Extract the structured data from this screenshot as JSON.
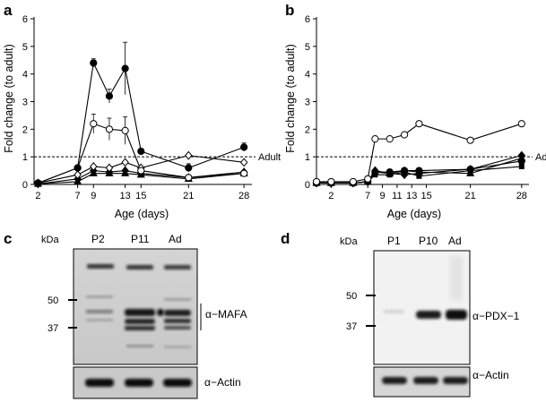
{
  "panels": {
    "a": {
      "letter": "a"
    },
    "b": {
      "letter": "b"
    },
    "c": {
      "letter": "c"
    },
    "d": {
      "letter": "d"
    }
  },
  "chart_data": [
    {
      "type": "line",
      "panel": "a",
      "xlabel": "Age (days)",
      "ylabel": "Fold change (to adult)",
      "xlim": [
        1.5,
        29
      ],
      "ylim": [
        0,
        6
      ],
      "xticks": [
        2,
        7,
        9,
        13,
        15,
        21,
        28
      ],
      "yticks": [
        0,
        1,
        2,
        3,
        4,
        5,
        6
      ],
      "reference_line": {
        "y": 1,
        "label": "Adult",
        "style": "dashed"
      },
      "series": [
        {
          "marker": "filled-circle",
          "points": [
            [
              2,
              0.05
            ],
            [
              7,
              0.6
            ],
            [
              9,
              4.4
            ],
            [
              11,
              3.2
            ],
            [
              13,
              4.2
            ],
            [
              15,
              1.2
            ],
            [
              21,
              0.6
            ],
            [
              28,
              1.35
            ]
          ],
          "errors": [
            0,
            0.1,
            0.15,
            0.25,
            0.95,
            0.1,
            0.15,
            0.15
          ]
        },
        {
          "marker": "open-circle",
          "points": [
            [
              2,
              0.05
            ],
            [
              7,
              0.6
            ],
            [
              9,
              2.2
            ],
            [
              11,
              2.0
            ],
            [
              13,
              1.95
            ],
            [
              15,
              0.5
            ],
            [
              21,
              0.25
            ],
            [
              28,
              0.4
            ]
          ],
          "errors": [
            0,
            0.1,
            0.35,
            0.4,
            0.5,
            0.1,
            0.05,
            0.05
          ]
        },
        {
          "marker": "open-diamond",
          "points": [
            [
              2,
              0.05
            ],
            [
              7,
              0.35
            ],
            [
              9,
              0.65
            ],
            [
              11,
              0.6
            ],
            [
              13,
              0.8
            ],
            [
              15,
              0.6
            ],
            [
              21,
              1.05
            ],
            [
              28,
              0.8
            ]
          ],
          "errors": [
            0,
            0,
            0,
            0,
            0,
            0,
            0,
            0
          ]
        },
        {
          "marker": "filled-triangle",
          "points": [
            [
              2,
              0.02
            ],
            [
              7,
              0.1
            ],
            [
              9,
              0.4
            ],
            [
              11,
              0.4
            ],
            [
              13,
              0.4
            ],
            [
              15,
              0.35
            ],
            [
              21,
              0.2
            ],
            [
              28,
              0.4
            ]
          ],
          "errors": [
            0,
            0,
            0,
            0,
            0,
            0,
            0,
            0
          ]
        },
        {
          "marker": "filled-diamond",
          "points": [
            [
              2,
              0.02
            ],
            [
              7,
              0.2
            ],
            [
              9,
              0.5
            ],
            [
              11,
              0.45
            ],
            [
              13,
              0.5
            ],
            [
              15,
              0.4
            ],
            [
              21,
              0.25
            ],
            [
              28,
              0.45
            ]
          ],
          "errors": [
            0,
            0,
            0,
            0,
            0,
            0,
            0,
            0
          ]
        }
      ]
    },
    {
      "type": "line",
      "panel": "b",
      "xlabel": "Age (days)",
      "ylabel": "Fold change (to adult)",
      "xlim": [
        0,
        29
      ],
      "ylim": [
        0,
        6
      ],
      "xticks": [
        2,
        7,
        9,
        11,
        13,
        15,
        21,
        28
      ],
      "yticks": [
        0,
        1,
        2,
        3,
        4,
        5,
        6
      ],
      "reference_line": {
        "y": 1,
        "label": "Adult",
        "style": "dashed"
      },
      "series": [
        {
          "marker": "open-circle",
          "points": [
            [
              0,
              0.1
            ],
            [
              2,
              0.1
            ],
            [
              5,
              0.1
            ],
            [
              7,
              0.2
            ],
            [
              8,
              1.65
            ],
            [
              10,
              1.65
            ],
            [
              12,
              1.8
            ],
            [
              14,
              2.2
            ],
            [
              21,
              1.6
            ],
            [
              28,
              2.2
            ]
          ]
        },
        {
          "marker": "filled-circle",
          "points": [
            [
              0,
              0.05
            ],
            [
              2,
              0.05
            ],
            [
              5,
              0.05
            ],
            [
              7,
              0.1
            ],
            [
              8,
              0.45
            ],
            [
              10,
              0.45
            ],
            [
              12,
              0.5
            ],
            [
              14,
              0.5
            ],
            [
              21,
              0.55
            ],
            [
              28,
              0.85
            ]
          ]
        },
        {
          "marker": "filled-square",
          "points": [
            [
              0,
              0.05
            ],
            [
              2,
              0.05
            ],
            [
              5,
              0.05
            ],
            [
              7,
              0.1
            ],
            [
              8,
              0.35
            ],
            [
              10,
              0.35
            ],
            [
              12,
              0.45
            ],
            [
              14,
              0.3
            ],
            [
              21,
              0.5
            ],
            [
              28,
              0.65
            ]
          ]
        },
        {
          "marker": "filled-triangle",
          "points": [
            [
              0,
              0.05
            ],
            [
              2,
              0.05
            ],
            [
              5,
              0.05
            ],
            [
              7,
              0.1
            ],
            [
              8,
              0.45
            ],
            [
              10,
              0.4
            ],
            [
              12,
              0.5
            ],
            [
              14,
              0.45
            ],
            [
              21,
              0.4
            ],
            [
              28,
              0.95
            ]
          ]
        },
        {
          "marker": "filled-diamond",
          "points": [
            [
              0,
              0.05
            ],
            [
              2,
              0.05
            ],
            [
              5,
              0.05
            ],
            [
              7,
              0.1
            ],
            [
              8,
              0.5
            ],
            [
              10,
              0.4
            ],
            [
              12,
              0.35
            ],
            [
              14,
              0.4
            ],
            [
              21,
              0.55
            ],
            [
              28,
              1.05
            ]
          ]
        }
      ]
    }
  ],
  "blot_c": {
    "kda_label": "kDa",
    "lanes": [
      "P2",
      "P11",
      "Ad"
    ],
    "markers": [
      "50",
      "37"
    ],
    "target_label": "α−MAFA",
    "actin_label": "α−Actin"
  },
  "blot_d": {
    "kda_label": "kDa",
    "lanes": [
      "P1",
      "P10",
      "Ad"
    ],
    "markers": [
      "50",
      "37"
    ],
    "target_label": "α−PDX−1",
    "actin_label": "α−Actin"
  }
}
